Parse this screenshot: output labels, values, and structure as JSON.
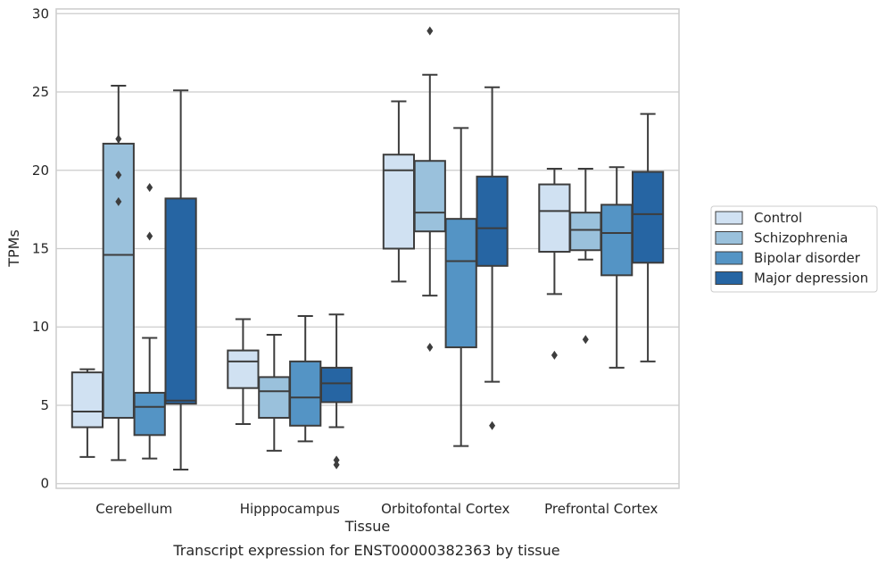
{
  "chart_data": {
    "type": "box",
    "xlabel": "Tissue",
    "ylabel": "TPMs",
    "caption": "Transcript expression for ENST00000382363 by tissue",
    "ylim": [
      -0.3,
      30.3
    ],
    "yticks": [
      0,
      5,
      10,
      15,
      20,
      25,
      30
    ],
    "grid": "horizontal",
    "legend_position": "right",
    "categories": [
      "Cerebellum",
      "Hipppocampus",
      "Orbitofontal Cortex",
      "Prefrontal Cortex"
    ],
    "series": [
      {
        "name": "Control",
        "color": "#d0e1f2",
        "boxes": [
          {
            "whisker_low": 1.7,
            "q1": 3.6,
            "median": 4.6,
            "q3": 7.1,
            "whisker_high": 7.3,
            "outliers": []
          },
          {
            "whisker_low": 3.8,
            "q1": 6.1,
            "median": 7.8,
            "q3": 8.5,
            "whisker_high": 10.5,
            "outliers": []
          },
          {
            "whisker_low": 12.9,
            "q1": 15.0,
            "median": 20.0,
            "q3": 21.0,
            "whisker_high": 24.4,
            "outliers": []
          },
          {
            "whisker_low": 12.1,
            "q1": 14.8,
            "median": 17.4,
            "q3": 19.1,
            "whisker_high": 20.1,
            "outliers": [
              8.2
            ]
          }
        ]
      },
      {
        "name": "Schizophrenia",
        "color": "#9ac1dc",
        "boxes": [
          {
            "whisker_low": 1.5,
            "q1": 4.2,
            "median": 14.6,
            "q3": 21.7,
            "whisker_high": 25.4,
            "outliers": [
              22.0,
              19.7,
              18.0
            ]
          },
          {
            "whisker_low": 2.1,
            "q1": 4.2,
            "median": 5.9,
            "q3": 6.8,
            "whisker_high": 9.5,
            "outliers": []
          },
          {
            "whisker_low": 12.0,
            "q1": 16.1,
            "median": 17.3,
            "q3": 20.6,
            "whisker_high": 26.1,
            "outliers": [
              28.9,
              8.7
            ]
          },
          {
            "whisker_low": 14.3,
            "q1": 14.9,
            "median": 16.2,
            "q3": 17.3,
            "whisker_high": 20.1,
            "outliers": [
              9.2
            ]
          }
        ]
      },
      {
        "name": "Bipolar disorder",
        "color": "#5494c5",
        "boxes": [
          {
            "whisker_low": 1.6,
            "q1": 3.1,
            "median": 4.9,
            "q3": 5.8,
            "whisker_high": 9.3,
            "outliers": [
              18.9,
              15.8
            ]
          },
          {
            "whisker_low": 2.7,
            "q1": 3.7,
            "median": 5.5,
            "q3": 7.8,
            "whisker_high": 10.7,
            "outliers": []
          },
          {
            "whisker_low": 2.4,
            "q1": 8.7,
            "median": 14.2,
            "q3": 16.9,
            "whisker_high": 22.7,
            "outliers": []
          },
          {
            "whisker_low": 7.4,
            "q1": 13.3,
            "median": 16.0,
            "q3": 17.8,
            "whisker_high": 20.2,
            "outliers": []
          }
        ]
      },
      {
        "name": "Major depression",
        "color": "#2665a3",
        "boxes": [
          {
            "whisker_low": 0.9,
            "q1": 5.1,
            "median": 5.3,
            "q3": 18.2,
            "whisker_high": 25.1,
            "outliers": []
          },
          {
            "whisker_low": 3.6,
            "q1": 5.2,
            "median": 6.4,
            "q3": 7.4,
            "whisker_high": 10.8,
            "outliers": [
              1.5,
              1.2
            ]
          },
          {
            "whisker_low": 6.5,
            "q1": 13.9,
            "median": 16.3,
            "q3": 19.6,
            "whisker_high": 25.3,
            "outliers": [
              3.7
            ]
          },
          {
            "whisker_low": 7.8,
            "q1": 14.1,
            "median": 17.2,
            "q3": 19.9,
            "whisker_high": 23.6,
            "outliers": []
          }
        ]
      }
    ]
  }
}
